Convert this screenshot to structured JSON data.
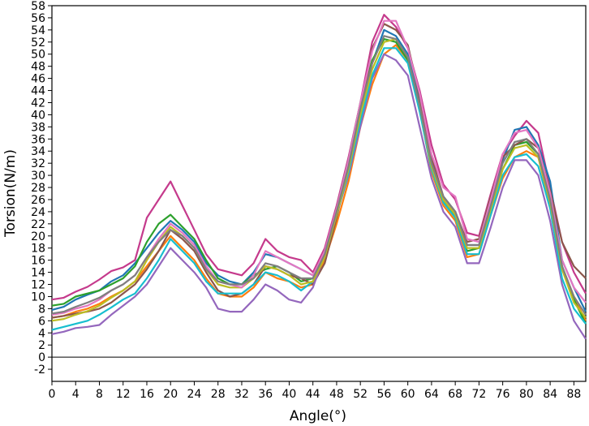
{
  "chart_data": {
    "type": "line",
    "title": "",
    "xlabel": "Angle(°)",
    "ylabel": "Torsion(N/m)",
    "xlim": [
      0,
      90
    ],
    "ylim": [
      -4,
      58
    ],
    "xticks": [
      0,
      4,
      8,
      12,
      16,
      20,
      24,
      28,
      32,
      36,
      40,
      44,
      48,
      52,
      56,
      60,
      64,
      68,
      72,
      76,
      80,
      84,
      88
    ],
    "yticks": [
      -2,
      0,
      2,
      4,
      6,
      8,
      10,
      12,
      14,
      16,
      18,
      20,
      22,
      24,
      26,
      28,
      30,
      32,
      34,
      36,
      38,
      40,
      42,
      44,
      46,
      48,
      50,
      52,
      54,
      56,
      58
    ],
    "zero_line": true,
    "grid": false,
    "legend": "none",
    "x": [
      0,
      2,
      4,
      6,
      8,
      10,
      12,
      14,
      16,
      18,
      20,
      22,
      24,
      26,
      28,
      30,
      32,
      34,
      36,
      38,
      40,
      42,
      44,
      46,
      48,
      50,
      52,
      54,
      56,
      58,
      60,
      62,
      64,
      66,
      68,
      70,
      72,
      74,
      76,
      78,
      80,
      82,
      84,
      86,
      88,
      90
    ],
    "series": [
      {
        "color": "#c53a8c",
        "values": [
          9.5,
          9.8,
          10.8,
          11.6,
          12.8,
          14.2,
          14.8,
          16.0,
          23.0,
          26.0,
          29.0,
          25.0,
          21.0,
          17.0,
          14.5,
          14.0,
          13.5,
          15.5,
          19.5,
          17.5,
          16.5,
          16.0,
          14.0,
          18.0,
          25.0,
          33.0,
          42.0,
          52.0,
          56.5,
          54.5,
          51.0,
          44.0,
          35.0,
          28.5,
          26.0,
          20.5,
          20.0,
          27.0,
          33.5,
          36.5,
          39.0,
          37.0,
          28.0,
          19.0,
          14.0,
          10.5
        ]
      },
      {
        "color": "#1f77b4",
        "values": [
          7.8,
          8.3,
          9.5,
          10.3,
          11.0,
          12.5,
          13.5,
          15.5,
          18.0,
          20.5,
          22.5,
          21.0,
          19.0,
          15.5,
          13.5,
          12.5,
          12.0,
          14.0,
          17.0,
          16.5,
          15.5,
          14.5,
          13.5,
          16.5,
          24.0,
          32.0,
          41.0,
          48.5,
          54.0,
          53.0,
          50.0,
          42.0,
          32.0,
          26.5,
          24.0,
          18.5,
          18.5,
          25.5,
          32.5,
          37.5,
          38.0,
          35.0,
          29.0,
          16.0,
          11.5,
          7.5
        ]
      },
      {
        "color": "#ff7f0e",
        "values": [
          6.5,
          6.8,
          7.5,
          8.0,
          8.8,
          10.0,
          11.0,
          12.5,
          15.0,
          17.5,
          20.0,
          18.0,
          16.0,
          13.0,
          10.5,
          10.0,
          10.0,
          11.5,
          14.0,
          13.0,
          12.5,
          11.5,
          12.0,
          16.0,
          22.0,
          29.0,
          38.0,
          45.0,
          50.0,
          51.5,
          49.0,
          41.0,
          30.5,
          25.0,
          22.5,
          16.5,
          17.0,
          23.5,
          29.5,
          33.0,
          34.0,
          33.0,
          25.0,
          15.0,
          10.0,
          6.0
        ]
      },
      {
        "color": "#2ca02c",
        "values": [
          8.5,
          8.8,
          10.0,
          10.5,
          11.0,
          12.0,
          13.0,
          15.0,
          19.0,
          22.0,
          23.5,
          21.5,
          19.5,
          16.0,
          13.0,
          12.0,
          12.0,
          13.5,
          14.5,
          15.0,
          14.0,
          12.5,
          13.0,
          17.0,
          24.5,
          32.5,
          42.0,
          49.0,
          52.5,
          52.0,
          49.0,
          41.0,
          31.5,
          26.0,
          23.0,
          17.5,
          18.0,
          24.5,
          31.0,
          35.0,
          35.5,
          33.5,
          26.0,
          15.0,
          9.5,
          5.5
        ]
      },
      {
        "color": "#8c564b",
        "values": [
          6.5,
          6.8,
          7.2,
          7.5,
          8.0,
          9.0,
          10.5,
          12.0,
          14.5,
          17.5,
          21.0,
          19.5,
          17.5,
          14.0,
          11.0,
          10.0,
          10.5,
          12.0,
          15.0,
          14.5,
          13.5,
          13.0,
          12.0,
          15.5,
          23.0,
          31.5,
          40.5,
          51.0,
          55.0,
          54.0,
          51.5,
          43.0,
          33.0,
          26.5,
          24.0,
          19.0,
          19.5,
          26.5,
          33.0,
          35.0,
          36.0,
          34.5,
          27.5,
          19.0,
          15.0,
          13.0
        ]
      },
      {
        "color": "#9467bd",
        "values": [
          3.8,
          4.2,
          4.8,
          5.0,
          5.3,
          7.0,
          8.5,
          10.0,
          12.0,
          15.0,
          18.0,
          16.0,
          14.0,
          11.5,
          8.0,
          7.5,
          7.5,
          9.5,
          12.0,
          11.0,
          9.5,
          9.0,
          11.5,
          17.0,
          23.5,
          30.0,
          38.0,
          46.0,
          50.0,
          49.0,
          46.5,
          38.0,
          29.5,
          24.0,
          21.5,
          15.5,
          15.5,
          21.5,
          28.0,
          32.5,
          32.5,
          30.0,
          22.5,
          12.0,
          6.0,
          3.0
        ]
      },
      {
        "color": "#17becf",
        "values": [
          4.5,
          5.0,
          5.5,
          6.0,
          7.0,
          8.2,
          9.5,
          10.5,
          13.0,
          16.0,
          19.5,
          17.5,
          15.5,
          12.5,
          10.5,
          10.5,
          10.5,
          12.0,
          14.0,
          13.5,
          12.5,
          11.0,
          12.5,
          17.5,
          23.5,
          30.5,
          39.0,
          46.5,
          51.0,
          51.0,
          48.5,
          40.5,
          31.0,
          25.5,
          23.0,
          17.0,
          17.0,
          23.5,
          30.0,
          33.0,
          33.5,
          31.5,
          24.5,
          13.0,
          8.0,
          5.5
        ]
      },
      {
        "color": "#bcbd22",
        "values": [
          6.0,
          6.3,
          7.0,
          7.6,
          8.5,
          9.8,
          11.0,
          12.5,
          16.0,
          19.0,
          21.5,
          20.0,
          18.0,
          14.5,
          12.0,
          11.5,
          11.5,
          13.0,
          15.0,
          14.5,
          13.5,
          12.0,
          12.5,
          16.5,
          23.5,
          31.0,
          40.0,
          47.5,
          52.0,
          52.5,
          49.5,
          41.5,
          31.5,
          26.0,
          23.5,
          18.0,
          18.0,
          24.5,
          31.0,
          34.5,
          35.0,
          33.0,
          25.5,
          14.5,
          9.0,
          6.5
        ]
      },
      {
        "color": "#e377c2",
        "values": [
          7.0,
          7.3,
          8.0,
          8.5,
          9.5,
          11.0,
          12.0,
          13.5,
          16.5,
          19.5,
          22.0,
          20.5,
          18.5,
          15.0,
          12.5,
          12.0,
          11.5,
          13.5,
          17.5,
          16.5,
          15.5,
          14.5,
          13.5,
          17.5,
          24.5,
          32.5,
          42.0,
          50.5,
          55.5,
          55.5,
          51.0,
          43.5,
          33.5,
          28.0,
          26.5,
          19.5,
          19.0,
          26.0,
          33.5,
          37.0,
          37.5,
          34.5,
          27.0,
          16.0,
          11.5,
          9.0
        ]
      },
      {
        "color": "#7f7f7f",
        "values": [
          7.2,
          7.5,
          8.3,
          9.0,
          9.8,
          11.0,
          12.0,
          13.5,
          16.5,
          19.0,
          21.0,
          20.0,
          18.0,
          14.5,
          12.5,
          12.0,
          12.0,
          13.0,
          15.5,
          15.0,
          14.0,
          13.0,
          13.0,
          17.0,
          24.0,
          31.5,
          41.0,
          48.5,
          53.0,
          52.5,
          49.5,
          41.5,
          32.0,
          26.5,
          24.0,
          18.5,
          18.5,
          25.0,
          32.0,
          35.5,
          36.0,
          33.5,
          26.0,
          15.0,
          10.0,
          7.0
        ]
      }
    ]
  }
}
